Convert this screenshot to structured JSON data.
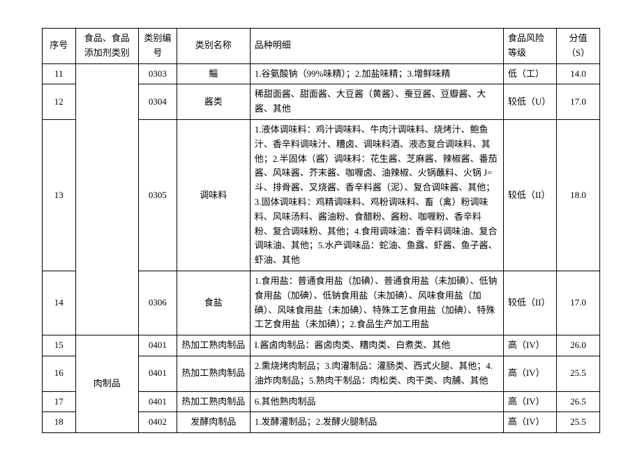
{
  "headers": {
    "seq": "序号",
    "category": "食品、食品添加剂类别",
    "code": "类别编号",
    "name": "类别名称",
    "detail": "品种明细",
    "risk": "食品风险等级",
    "score": "分值（S）"
  },
  "category_groups": {
    "g1": "",
    "g2": "肉制品"
  },
  "rows": {
    "r11": {
      "seq": "11",
      "code": "0303",
      "name": "鲻",
      "detail": "1.谷氨酸钠（99%味精）；2.加盐味精；3.增鲜味精",
      "risk": "低（工）",
      "score": "14.0"
    },
    "r12": {
      "seq": "12",
      "code": "0304",
      "name": "酱类",
      "detail": "稀甜面酱、甜面酱、大豆酱（黄酱）、蚕豆酱、豆瓣酱、大酱、其他",
      "risk": "较低（U）",
      "score": "17.0"
    },
    "r13": {
      "seq": "13",
      "code": "0305",
      "name": "调味料",
      "detail": "1.液体调味料：鸡汁调味料、牛肉汁调味料、烧烤汁、鲍鱼汁、香辛料调味汁、糟卤、调味料酒、液态复合调味料、其他；2.半固体（酱）调味料：花生酱、芝麻酱、辣椒酱、番茄酱、风味酱、芥末酱、咖喱卤、油辣椒、火锅蘸料、火锅 J=斗、排骨酱、叉烧酱、香辛料酱（泥）、复合调味酱、其他；3.固体调味料：鸡精调味料、鸡粉调味料、畜（禽）粉调味料、风味汤料、酱油粉、食醋粉、酱粉、咖喱粉、香辛料粉、复合调味粉、其他；4.食用调味油：香辛料调味油、复合调味油、其他；5.水产调味品：蛇油、鱼露、虾酱、鱼子酱、虾油、其他",
      "risk": "较低（II）",
      "score": "18.0"
    },
    "r14": {
      "seq": "14",
      "code": "0306",
      "name": "食盐",
      "detail": "1.食用盐：普通食用盐（加碘）、普通食用盐（未加碘）、低钠食用盐（加碘）、低钠食用盐（未加碘）、风味食用盐（加碘）、风味食用盐（未加碘）、特殊工艺食用盐（加碘）、特殊工艺食用盐（未加碘）；2.食品生产加工用盐",
      "risk": "较低（II）",
      "score": "17.0"
    },
    "r15": {
      "seq": "15",
      "code": "0401",
      "name": "热加工熟肉制品",
      "detail": "I.酱卤肉制品：酱卤肉类、糟肉类、白煮类、其他",
      "risk": "高（IV）",
      "score": "26.0"
    },
    "r16": {
      "seq": "16",
      "code": "0401",
      "name": "热加工熟肉制品",
      "detail": "2.熏烧烤肉制品；3.肉灌制品：灌肠类、西式火腿、其他；4.油炸肉制品；5.熟肉干制品：肉松类、肉干类、肉脯、其他",
      "risk": "高（IV）",
      "score": "25.5"
    },
    "r17": {
      "seq": "17",
      "code": "0401",
      "name": "热加工熟肉制品",
      "detail": "6.其他熟肉制品",
      "risk": "高（IV）",
      "score": "26.5"
    },
    "r18": {
      "seq": "18",
      "code": "0402",
      "name": "发酵肉制品",
      "detail": "1.发酵灌制品；2.发酵火腿制品",
      "risk": "高（IV）",
      "score": "25.5"
    }
  }
}
